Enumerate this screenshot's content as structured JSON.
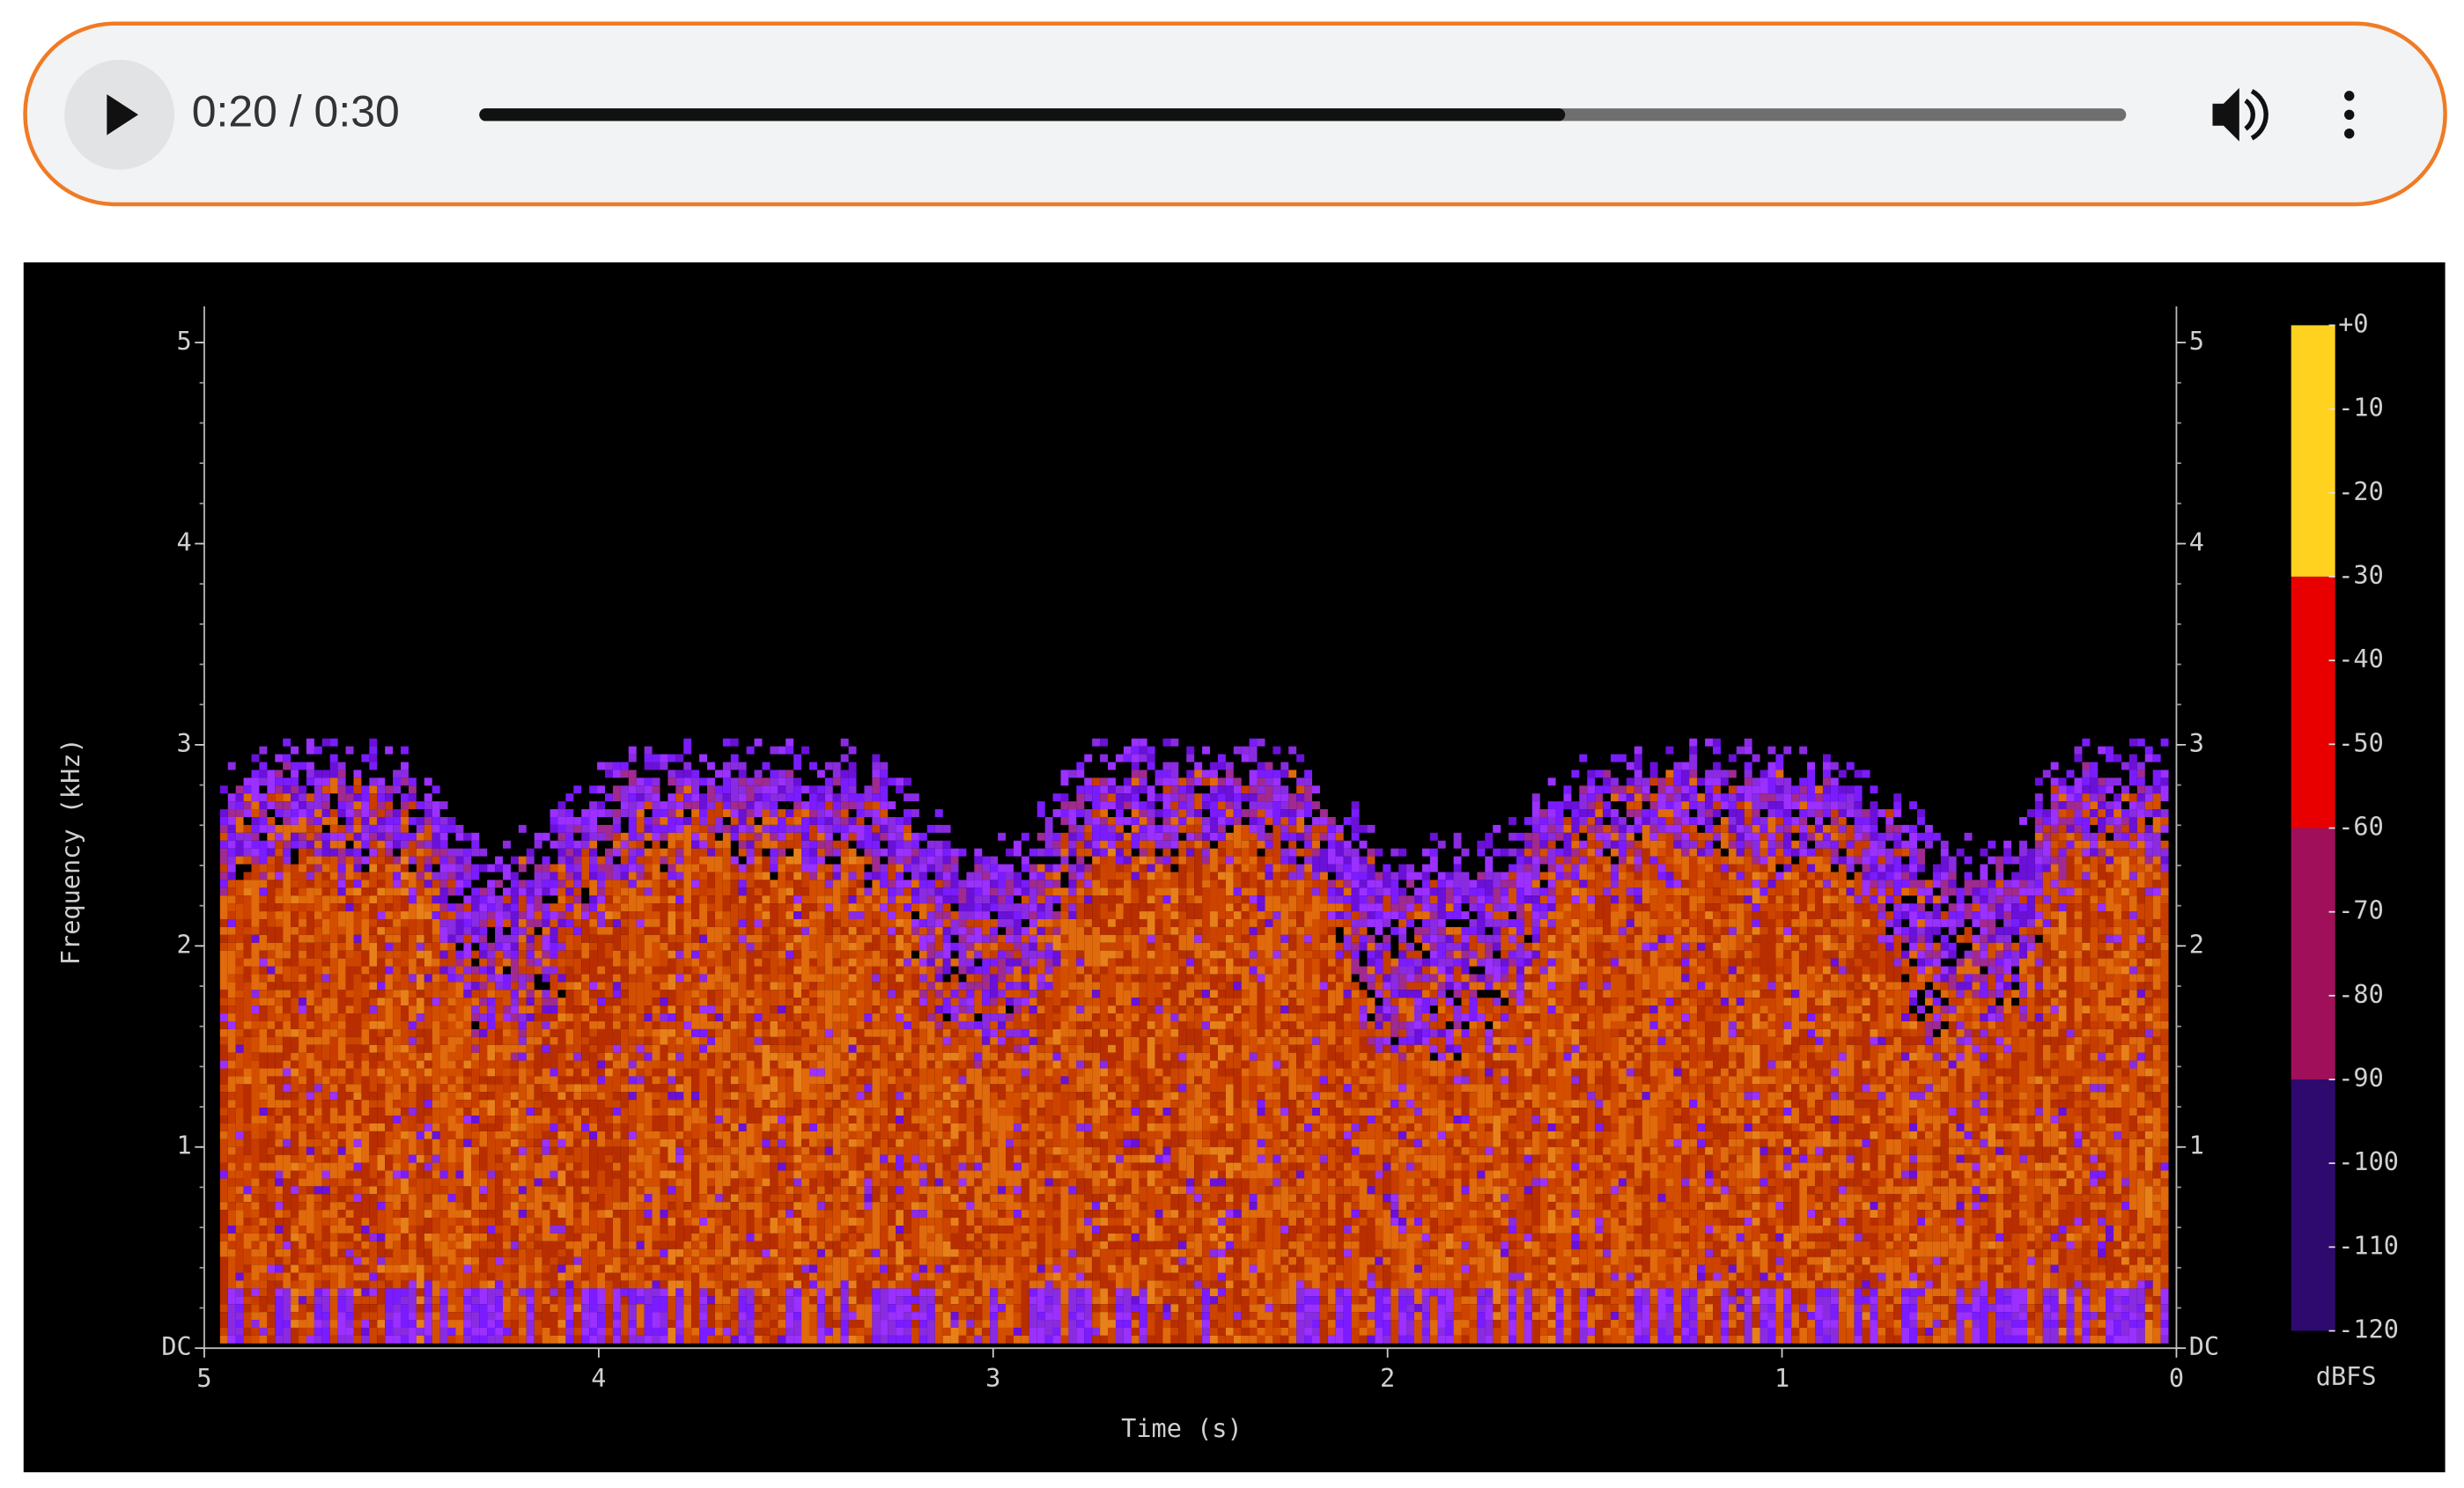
{
  "player": {
    "time": "0:20 / 0:30"
  },
  "spectrogram": {
    "y_label": "Frequency (kHz)",
    "x_label": "Time (s)",
    "xlim": [
      5,
      0
    ],
    "ylim": [
      0,
      5
    ],
    "xticks": [
      5,
      4,
      3,
      2,
      1,
      0
    ],
    "yticks": [
      {
        "value": 0,
        "label": "DC"
      },
      1,
      2,
      3,
      4,
      5
    ],
    "colorbar": {
      "label": "dBFS",
      "lim": [
        0,
        -120
      ],
      "ticks": [
        {
          "value": 0,
          "label": "+0"
        },
        -10,
        -20,
        -30,
        -40,
        -50,
        -60,
        -70,
        -80,
        -90,
        -100,
        -110,
        -120
      ],
      "bands": [
        {
          "from": 0,
          "to": -30,
          "color": "#ffd21f"
        },
        {
          "from": -30,
          "to": -60,
          "color": "#e80000"
        },
        {
          "from": -60,
          "to": -90,
          "color": "#a0105a"
        },
        {
          "from": -90,
          "to": -120,
          "color": "#2e0a6e"
        }
      ]
    }
  }
}
